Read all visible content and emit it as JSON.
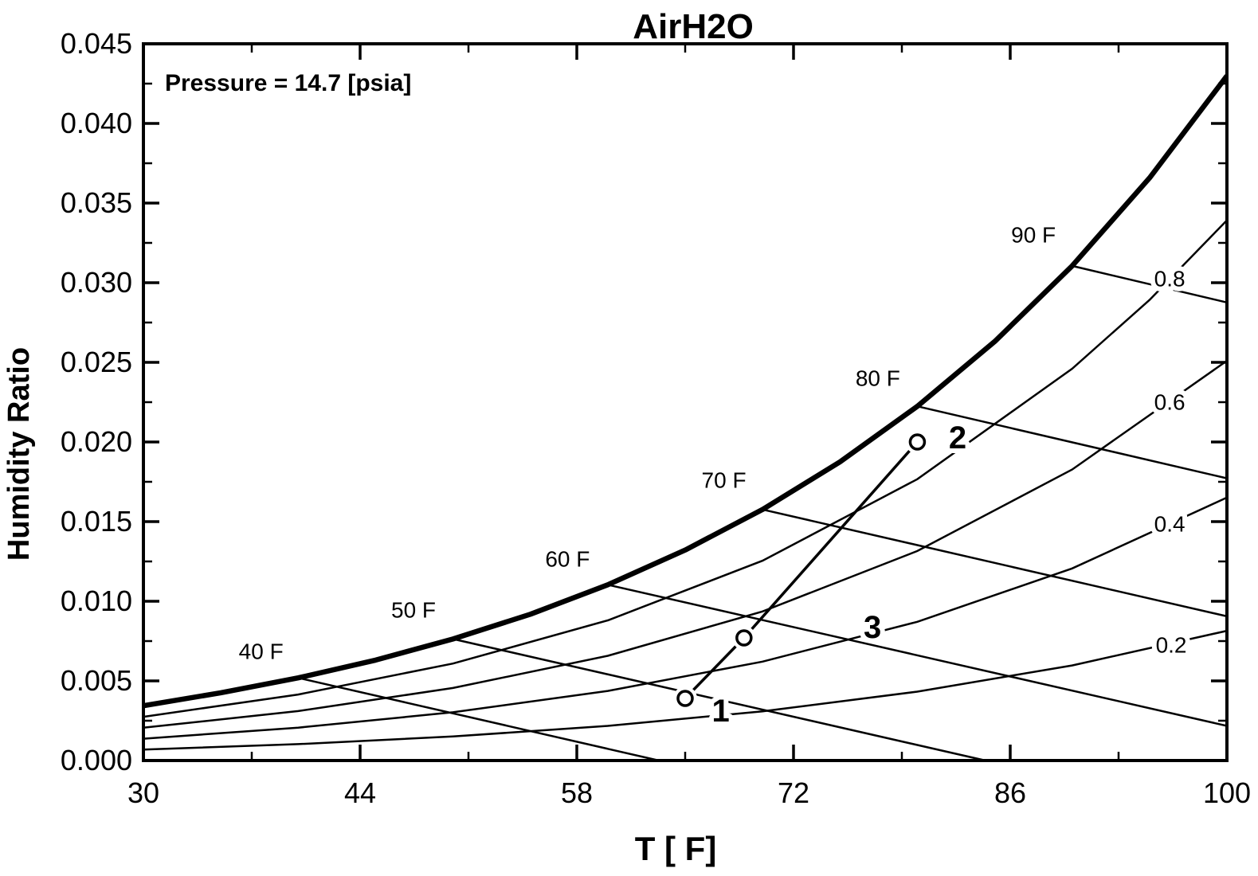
{
  "title": "AirH2O",
  "annotation": "Pressure = 14.7 [psia]",
  "colors": {
    "foreground": "#000000",
    "background": "#ffffff"
  },
  "chart_data": {
    "type": "line",
    "title": "AirH2O",
    "annotation": "Pressure = 14.7 [psia]",
    "xlabel": "T [ F]",
    "ylabel": "Humidity Ratio",
    "xlim": [
      30,
      100
    ],
    "ylim": [
      0,
      0.045
    ],
    "x_tick_values": [
      30,
      44,
      58,
      72,
      86,
      100
    ],
    "x_tick_labels": [
      "30",
      "44",
      "58",
      "72",
      "86",
      "100"
    ],
    "x_minor_ticks": [
      37,
      51,
      65,
      79,
      93
    ],
    "y_tick_values": [
      0.0,
      0.005,
      0.01,
      0.015,
      0.02,
      0.025,
      0.03,
      0.035,
      0.04,
      0.045
    ],
    "y_tick_labels": [
      "0.000",
      "0.005",
      "0.010",
      "0.015",
      "0.020",
      "0.025",
      "0.030",
      "0.035",
      "0.040",
      "0.045"
    ],
    "y_minor_ticks": [
      0.0025,
      0.0075,
      0.0125,
      0.0175,
      0.0225,
      0.0275,
      0.0325,
      0.0375,
      0.0425
    ],
    "grid": false,
    "saturation_curve": {
      "rh": 1.0,
      "points": [
        [
          30,
          0.00344
        ],
        [
          35,
          0.004256
        ],
        [
          40,
          0.005191
        ],
        [
          45,
          0.006305
        ],
        [
          50,
          0.007629
        ],
        [
          55,
          0.009185
        ],
        [
          60,
          0.011037
        ],
        [
          65,
          0.013214
        ],
        [
          70,
          0.01576
        ],
        [
          75,
          0.018751
        ],
        [
          80,
          0.02224
        ],
        [
          85,
          0.026312
        ],
        [
          90,
          0.031056
        ],
        [
          95,
          0.036578
        ],
        [
          100,
          0.042988
        ]
      ]
    },
    "rh_curves": [
      {
        "value": 0.8,
        "label": "0.8",
        "label_at": [
          96.3,
          0.03025
        ],
        "points": [
          [
            30,
            0.002747
          ],
          [
            40,
            0.004146
          ],
          [
            50,
            0.006089
          ],
          [
            60,
            0.008798
          ],
          [
            70,
            0.012544
          ],
          [
            80,
            0.017665
          ],
          [
            90,
            0.024598
          ],
          [
            95,
            0.028922
          ],
          [
            100,
            0.033922
          ]
        ]
      },
      {
        "value": 0.6,
        "label": "0.6",
        "label_at": [
          96.3,
          0.0225
        ],
        "points": [
          [
            30,
            0.002058
          ],
          [
            40,
            0.003104
          ],
          [
            50,
            0.004555
          ],
          [
            60,
            0.006576
          ],
          [
            70,
            0.009361
          ],
          [
            80,
            0.013156
          ],
          [
            90,
            0.018268
          ],
          [
            100,
            0.0251
          ]
        ]
      },
      {
        "value": 0.4,
        "label": "0.4",
        "label_at": [
          96.3,
          0.01485
        ],
        "points": [
          [
            30,
            0.001371
          ],
          [
            40,
            0.002066
          ],
          [
            50,
            0.003029
          ],
          [
            60,
            0.004368
          ],
          [
            70,
            0.006209
          ],
          [
            80,
            0.008709
          ],
          [
            90,
            0.012061
          ],
          [
            100,
            0.016511
          ]
        ]
      },
      {
        "value": 0.2,
        "label": "0.2",
        "label_at": [
          96.4,
          0.00725
        ],
        "points": [
          [
            30,
            0.000685
          ],
          [
            40,
            0.001031
          ],
          [
            50,
            0.001511
          ],
          [
            60,
            0.002176
          ],
          [
            70,
            0.003089
          ],
          [
            80,
            0.004324
          ],
          [
            90,
            0.005972
          ],
          [
            100,
            0.008147
          ]
        ]
      }
    ],
    "wetbulb_lines": [
      {
        "value": 40,
        "label": "40 F",
        "label_at": [
          37.6,
          0.00685
        ],
        "points": [
          [
            40,
            0.005191
          ],
          [
            63.3,
            0
          ]
        ]
      },
      {
        "value": 50,
        "label": "50 F",
        "label_at": [
          47.45,
          0.00945
        ],
        "points": [
          [
            50,
            0.007629
          ],
          [
            84.4,
            0
          ]
        ]
      },
      {
        "value": 60,
        "label": "60 F",
        "label_at": [
          57.4,
          0.01265
        ],
        "points": [
          [
            60,
            0.011037
          ],
          [
            100,
            0.002175
          ]
        ]
      },
      {
        "value": 70,
        "label": "70 F",
        "label_at": [
          67.5,
          0.0176
        ],
        "points": [
          [
            70,
            0.01576
          ],
          [
            100,
            0.009056
          ]
        ]
      },
      {
        "value": 80,
        "label": "80 F",
        "label_at": [
          77.45,
          0.024
        ],
        "points": [
          [
            80,
            0.02224
          ],
          [
            100,
            0.017719
          ]
        ]
      },
      {
        "value": 90,
        "label": "90 F",
        "label_at": [
          87.5,
          0.033
        ],
        "points": [
          [
            90,
            0.031056
          ],
          [
            100,
            0.02876
          ]
        ]
      }
    ],
    "state_points": [
      {
        "id": "1",
        "T": 65.0,
        "w": 0.0039,
        "label_at": [
          67.3,
          0.0031
        ]
      },
      {
        "id": "2",
        "T": 80.0,
        "w": 0.02,
        "label_at": [
          82.6,
          0.02025
        ]
      },
      {
        "id": "3",
        "T": 68.8,
        "w": 0.0077,
        "label_at": [
          77.1,
          0.00835
        ]
      }
    ],
    "process_lines": [
      [
        "1",
        "3"
      ],
      [
        "3",
        "2"
      ]
    ]
  }
}
